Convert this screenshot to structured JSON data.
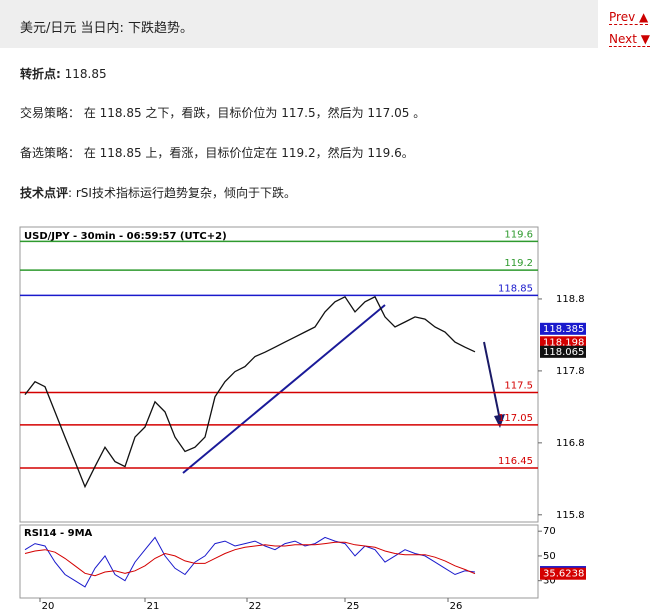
{
  "header": {
    "title": "美元/日元 当日内: 下跌趋势。",
    "prev": "Prev",
    "next": "Next"
  },
  "pivot": {
    "label": "转折点:",
    "text": " 118.85"
  },
  "strategy": "交易策略： 在 118.85 之下，看跌，目标价位为 117.5，然后为 117.05 。",
  "alternative": "备选策略： 在 118.85 上，看涨，目标价位定在 119.2，然后为 119.6。",
  "comment": {
    "label": "技术点评",
    "text": ": rSI技术指标运行趋势复杂，倾向于下跌。"
  },
  "chart_data": {
    "type": "line",
    "title": "USD/JPY - 30min - 06:59:57 (UTC+2)",
    "x_labels": [
      "20",
      "21",
      "22",
      "25",
      "26"
    ],
    "ylim": [
      115.7,
      119.8
    ],
    "yticks": [
      118.8,
      117.8,
      116.8,
      115.8
    ],
    "levels": [
      {
        "value": 119.6,
        "color": "#2e9a2e"
      },
      {
        "value": 119.2,
        "color": "#2e9a2e"
      },
      {
        "value": 118.85,
        "color": "#1a1acc"
      },
      {
        "value": 117.5,
        "color": "#d40000"
      },
      {
        "value": 117.05,
        "color": "#d40000"
      },
      {
        "value": 116.45,
        "color": "#d40000"
      }
    ],
    "series": [
      {
        "color": "#111111",
        "values": [
          117.47,
          117.65,
          117.58,
          117.23,
          116.88,
          116.54,
          116.19,
          116.47,
          116.74,
          116.54,
          116.47,
          116.88,
          117.02,
          117.37,
          117.23,
          116.88,
          116.68,
          116.74,
          116.88,
          117.44,
          117.65,
          117.79,
          117.86,
          118.0,
          118.06,
          118.13,
          118.2,
          118.27,
          118.34,
          118.41,
          118.62,
          118.76,
          118.83,
          118.62,
          118.76,
          118.83,
          118.55,
          118.41,
          118.48,
          118.55,
          118.52,
          118.41,
          118.34,
          118.2,
          118.13,
          118.065
        ]
      }
    ],
    "ma_labels": [
      {
        "value": 118.385,
        "color": "#1a1acc"
      },
      {
        "value": 118.198,
        "color": "#d40000"
      }
    ],
    "rsi": {
      "title": "RSI14 - 9MA",
      "ylim": [
        16,
        75
      ],
      "yticks": [
        70,
        50,
        30
      ],
      "series": [
        {
          "color": "#1a1acc",
          "values": [
            55,
            60,
            58,
            45,
            35,
            30,
            25,
            40,
            50,
            35,
            30,
            45,
            55,
            65,
            50,
            40,
            35,
            45,
            50,
            60,
            62,
            58,
            60,
            62,
            58,
            55,
            60,
            62,
            58,
            60,
            65,
            62,
            60,
            50,
            58,
            55,
            45,
            50,
            55,
            52,
            50,
            45,
            40,
            35,
            38,
            36.9815
          ]
        },
        {
          "color": "#d40000",
          "values": [
            52,
            54,
            55,
            53,
            48,
            42,
            36,
            34,
            37,
            38,
            36,
            38,
            42,
            48,
            52,
            50,
            46,
            44,
            44,
            48,
            52,
            55,
            57,
            58,
            59,
            58,
            58,
            59,
            59,
            59,
            60,
            61,
            61,
            59,
            58,
            57,
            54,
            52,
            51,
            51,
            51,
            49,
            46,
            42,
            39,
            35.6238
          ]
        }
      ]
    }
  }
}
